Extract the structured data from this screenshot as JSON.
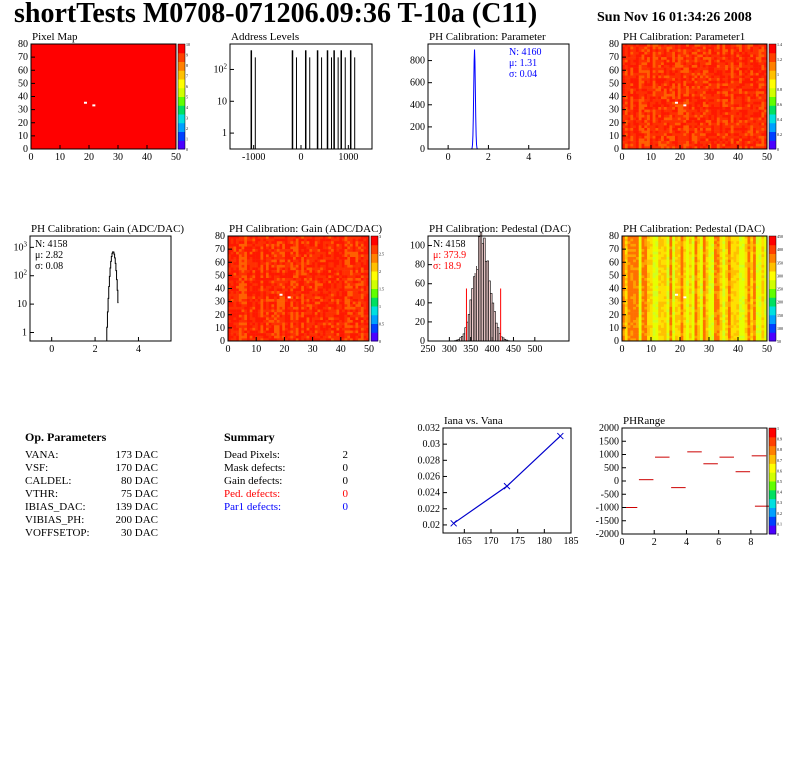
{
  "header": {
    "title": "shortTests M0708-071206.09:36 T-10a (C11)",
    "date": "Sun Nov 16 01:34:26 2008"
  },
  "op_params": {
    "heading": "Op. Parameters",
    "rows": [
      {
        "name": "VANA:",
        "value": "173 DAC"
      },
      {
        "name": "VSF:",
        "value": "170 DAC"
      },
      {
        "name": "CALDEL:",
        "value": "80 DAC"
      },
      {
        "name": "VTHR:",
        "value": "75 DAC"
      },
      {
        "name": "IBIAS_DAC:",
        "value": "139 DAC"
      },
      {
        "name": "VIBIAS_PH:",
        "value": "200 DAC"
      },
      {
        "name": "VOFFSETOP:",
        "value": "30 DAC"
      }
    ]
  },
  "summary": {
    "heading": "Summary",
    "rows": [
      {
        "name": "Dead Pixels:",
        "value": "2",
        "color": "#000000"
      },
      {
        "name": "Mask defects:",
        "value": "0",
        "color": "#000000"
      },
      {
        "name": "Gain defects:",
        "value": "0",
        "color": "#000000"
      },
      {
        "name": "Ped. defects:",
        "value": "0",
        "color": "#ff0000"
      },
      {
        "name": "Par1 defects:",
        "value": "0",
        "color": "#0000ff"
      }
    ]
  },
  "chart_data": [
    {
      "type": "heatmap",
      "title": "Pixel Map",
      "xlim": [
        0,
        52
      ],
      "ylim": [
        0,
        80
      ],
      "xticks": [
        "0",
        "10",
        "20",
        "30",
        "40",
        "50"
      ],
      "yticks": [
        "0",
        "10",
        "20",
        "30",
        "40",
        "50",
        "60",
        "70",
        "80"
      ],
      "zticks": [
        "10",
        "9",
        "8",
        "7",
        "6",
        "5",
        "4",
        "3",
        "2",
        "1",
        "0"
      ],
      "fill": "uniform",
      "dead_pixels": [
        [
          19,
          36
        ],
        [
          22,
          34
        ]
      ]
    },
    {
      "type": "bar",
      "title": "Address Levels",
      "xlim": [
        -1500,
        1500
      ],
      "yscale": "log",
      "xticks": [
        "-1000",
        "0",
        "1000"
      ],
      "yticks": [
        "1",
        "10",
        "10^2"
      ],
      "peaks": [
        -1050,
        -180,
        100,
        350,
        560,
        700,
        850,
        1050
      ],
      "peak_height": 400
    },
    {
      "type": "bar",
      "title": "PH Calibration: Parameter",
      "xlim": [
        -1,
        6
      ],
      "ylim": [
        0,
        950
      ],
      "xticks": [
        "0",
        "2",
        "4",
        "6"
      ],
      "yticks": [
        "0",
        "200",
        "400",
        "600",
        "800"
      ],
      "stats": [
        "N: 4160",
        "μ: 1.31",
        "σ: 0.04"
      ],
      "stats_color": "#0000ff",
      "mean": 1.31,
      "sigma": 0.04,
      "peak": 900
    },
    {
      "type": "heatmap",
      "title": "PH Calibration: Parameter1",
      "xlim": [
        0,
        52
      ],
      "ylim": [
        0,
        80
      ],
      "xticks": [
        "0",
        "10",
        "20",
        "30",
        "40",
        "50"
      ],
      "yticks": [
        "0",
        "10",
        "20",
        "30",
        "40",
        "50",
        "60",
        "70",
        "80"
      ],
      "zticks": [
        "1.4",
        "1.2",
        "1",
        "0.8",
        "0.6",
        "0.4",
        "0.2",
        "0"
      ],
      "fill": "noise-red"
    },
    {
      "type": "bar",
      "title": "PH Calibration: Gain (ADC/DAC)",
      "xlim": [
        -1,
        5.5
      ],
      "yscale": "log",
      "xticks": [
        "0",
        "2",
        "4"
      ],
      "yticks": [
        "1",
        "10",
        "10^2",
        "10^3"
      ],
      "stats": [
        "N: 4158",
        "μ: 2.82",
        "σ: 0.08"
      ],
      "stats_color": "#000000",
      "mean": 2.82,
      "sigma": 0.08,
      "peak": 700
    },
    {
      "type": "heatmap",
      "title": "PH Calibration: Gain (ADC/DAC)",
      "xlim": [
        0,
        52
      ],
      "ylim": [
        0,
        80
      ],
      "xticks": [
        "0",
        "10",
        "20",
        "30",
        "40",
        "50"
      ],
      "yticks": [
        "0",
        "10",
        "20",
        "30",
        "40",
        "50",
        "60",
        "70",
        "80"
      ],
      "zticks": [
        "3",
        "2.5",
        "2",
        "1.5",
        "1",
        "0.5",
        "0"
      ],
      "fill": "noise-red"
    },
    {
      "type": "bar",
      "title": "PH Calibration: Pedestal (DAC)",
      "xlim": [
        250,
        580
      ],
      "ylim": [
        0,
        110
      ],
      "xticks": [
        "250",
        "300",
        "350",
        "400",
        "450",
        "500"
      ],
      "yticks": [
        "0",
        "20",
        "40",
        "60",
        "80",
        "100"
      ],
      "stats": [
        "N: 4158",
        "μ: 373.9",
        "σ: 18.9"
      ],
      "stats_colors": [
        "#000000",
        "#ff0000",
        "#ff0000"
      ],
      "mean": 373.9,
      "sigma": 18.9,
      "peak": 100,
      "cut_lines": [
        340,
        420
      ]
    },
    {
      "type": "heatmap",
      "title": "PH Calibration: Pedestal (DAC)",
      "xlim": [
        0,
        52
      ],
      "ylim": [
        0,
        80
      ],
      "xticks": [
        "0",
        "10",
        "20",
        "30",
        "40",
        "50"
      ],
      "yticks": [
        "0",
        "10",
        "20",
        "30",
        "40",
        "50",
        "60",
        "70",
        "80"
      ],
      "zticks": [
        "450",
        "400",
        "350",
        "300",
        "250",
        "200",
        "150",
        "100",
        "50"
      ],
      "fill": "noise-yellow"
    },
    {
      "type": "line",
      "title": "Iana vs. Vana",
      "xlim": [
        161,
        185
      ],
      "ylim": [
        0.019,
        0.032
      ],
      "xticks": [
        "165",
        "170",
        "175",
        "180",
        "185"
      ],
      "yticks": [
        "0.02",
        "0.022",
        "0.024",
        "0.026",
        "0.028",
        "0.03",
        "0.032"
      ],
      "x": [
        163,
        173,
        183
      ],
      "y": [
        0.0202,
        0.0248,
        0.031
      ]
    },
    {
      "type": "scatter",
      "title": "PHRange",
      "xlim": [
        0,
        9
      ],
      "ylim": [
        -2000,
        2000
      ],
      "xticks": [
        "0",
        "2",
        "4",
        "6",
        "8"
      ],
      "yticks": [
        "-2000",
        "-1500",
        "-1000",
        "-500",
        "0",
        "500",
        "1000",
        "1500",
        "2000"
      ],
      "zticks": [
        "1",
        "0.9",
        "0.8",
        "0.7",
        "0.6",
        "0.5",
        "0.4",
        "0.3",
        "0.2",
        "0.1",
        "0"
      ],
      "segments": [
        [
          0.5,
          -1000
        ],
        [
          1.5,
          50
        ],
        [
          2.5,
          900
        ],
        [
          3.5,
          -250
        ],
        [
          4.5,
          1100
        ],
        [
          5.5,
          650
        ],
        [
          6.5,
          900
        ],
        [
          7.5,
          350
        ],
        [
          8.5,
          950
        ],
        [
          8.7,
          -950
        ]
      ]
    }
  ]
}
